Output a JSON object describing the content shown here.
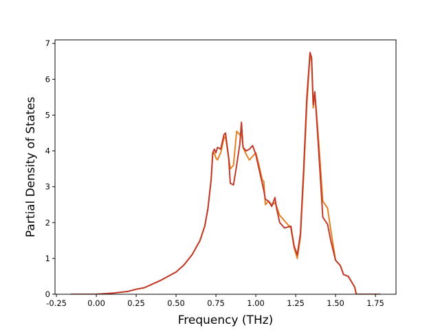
{
  "chart_data": {
    "type": "line",
    "xlabel": "Frequency (THz)",
    "ylabel": "Partial Density of States",
    "x": [
      -0.16,
      0.0,
      0.1,
      0.2,
      0.25,
      0.3,
      0.4,
      0.5,
      0.55,
      0.6,
      0.65,
      0.68,
      0.7,
      0.72,
      0.73,
      0.74,
      0.75,
      0.76,
      0.78,
      0.8,
      0.81,
      0.83,
      0.84,
      0.86,
      0.88,
      0.9,
      0.91,
      0.92,
      0.94,
      0.96,
      0.98,
      1.0,
      1.02,
      1.04,
      1.05,
      1.06,
      1.08,
      1.1,
      1.12,
      1.13,
      1.15,
      1.18,
      1.22,
      1.24,
      1.26,
      1.28,
      1.3,
      1.32,
      1.34,
      1.35,
      1.36,
      1.37,
      1.38,
      1.4,
      1.42,
      1.45,
      1.47,
      1.5,
      1.53,
      1.55,
      1.58,
      1.6,
      1.62,
      1.63,
      1.7,
      1.78
    ],
    "series": [
      {
        "color": "#e67e22",
        "values": [
          0,
          0,
          0.03,
          0.08,
          0.14,
          0.18,
          0.38,
          0.62,
          0.82,
          1.1,
          1.5,
          1.9,
          2.4,
          3.2,
          3.9,
          3.95,
          3.8,
          3.75,
          3.95,
          4.35,
          4.4,
          3.8,
          3.5,
          3.6,
          4.55,
          4.45,
          4.5,
          4.1,
          3.9,
          3.75,
          3.85,
          3.95,
          3.6,
          3.2,
          3.15,
          2.5,
          2.6,
          2.5,
          2.55,
          2.45,
          2.2,
          2.05,
          1.85,
          1.3,
          1.0,
          1.6,
          3.3,
          5.3,
          6.7,
          6.5,
          5.2,
          5.6,
          5.1,
          3.9,
          2.6,
          2.4,
          1.8,
          0.95,
          0.8,
          0.55,
          0.5,
          0.35,
          0.2,
          0,
          0,
          0
        ]
      },
      {
        "color": "#c0392b",
        "values": [
          0,
          0,
          0.03,
          0.08,
          0.14,
          0.18,
          0.38,
          0.62,
          0.82,
          1.1,
          1.5,
          1.9,
          2.4,
          3.2,
          3.95,
          4.05,
          3.95,
          4.1,
          4.05,
          4.45,
          4.5,
          3.8,
          3.1,
          3.05,
          3.6,
          4.2,
          4.8,
          4.1,
          4.0,
          4.05,
          4.15,
          3.9,
          3.5,
          3.1,
          2.9,
          2.65,
          2.6,
          2.45,
          2.7,
          2.4,
          2.0,
          1.85,
          1.9,
          1.35,
          1.1,
          1.7,
          3.5,
          5.5,
          6.75,
          6.6,
          5.3,
          5.65,
          5.0,
          3.6,
          2.15,
          1.95,
          1.5,
          0.95,
          0.8,
          0.55,
          0.5,
          0.35,
          0.2,
          0,
          0,
          0
        ]
      }
    ],
    "xlim": [
      -0.259,
      1.879
    ],
    "ylim": [
      0,
      7.1
    ],
    "xticks": [
      -0.25,
      {
        "value": 0,
        "label": "0.00"
      },
      0.25,
      {
        "value": 0.5,
        "label": "0.50"
      },
      0.75,
      {
        "value": 1,
        "label": "1.00"
      },
      1.25,
      {
        "value": 1.5,
        "label": "1.50"
      },
      1.75
    ],
    "yticks": [
      0,
      1,
      2,
      3,
      4,
      5,
      6,
      7
    ]
  }
}
